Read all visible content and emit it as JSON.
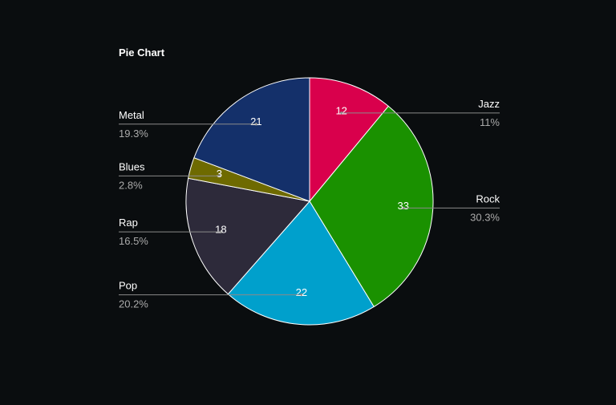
{
  "chart_data": {
    "type": "pie",
    "title": "Pie Chart",
    "slices": [
      {
        "label": "Jazz",
        "value": 12,
        "percent": "11%",
        "color": "#d9004c"
      },
      {
        "label": "Rock",
        "value": 33,
        "percent": "30.3%",
        "color": "#1a9100"
      },
      {
        "label": "Pop",
        "value": 22,
        "percent": "20.2%",
        "color": "#00a0cc"
      },
      {
        "label": "Rap",
        "value": 18,
        "percent": "16.5%",
        "color": "#2d2a3a"
      },
      {
        "label": "Blues",
        "value": 3,
        "percent": "2.8%",
        "color": "#6e6a00"
      },
      {
        "label": "Metal",
        "value": 21,
        "percent": "19.3%",
        "color": "#14306a"
      }
    ],
    "start_angle_deg": 0,
    "direction": "clockwise",
    "theme": {
      "background": "#0a0d0f",
      "text": "#ffffff",
      "subtext": "#aaaaaa",
      "leader": "#8a8a8a",
      "slice_border": "#ffffff"
    }
  }
}
